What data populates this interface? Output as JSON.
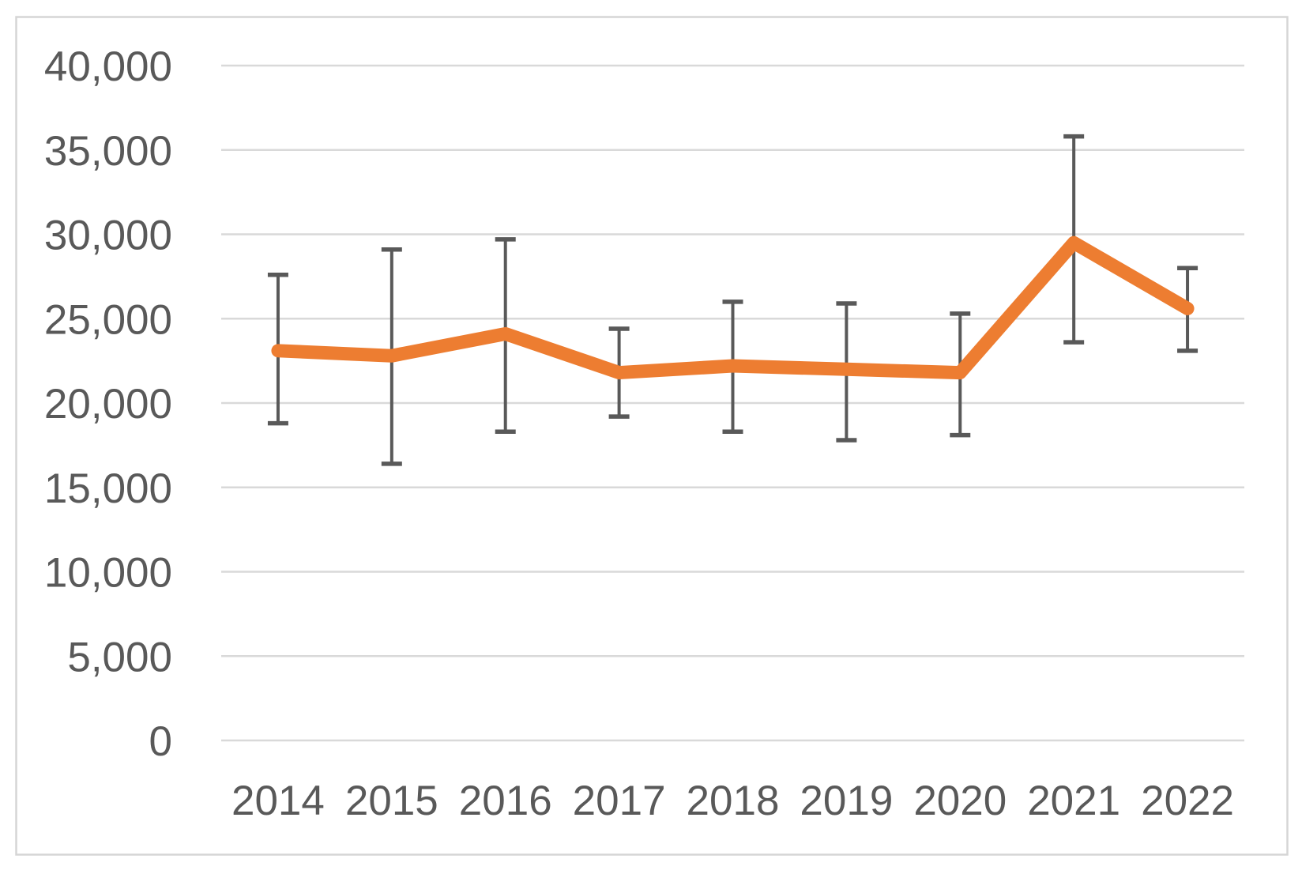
{
  "window": {
    "background": "#FFFFFF",
    "frame_border_color": "#D5D5D5"
  },
  "chart_data": {
    "type": "line",
    "title": "",
    "xlabel": "",
    "ylabel": "",
    "categories": [
      "2014",
      "2015",
      "2016",
      "2017",
      "2018",
      "2019",
      "2020",
      "2021",
      "2022"
    ],
    "series": [
      {
        "color": "#ED7D31",
        "values": [
          23100,
          22800,
          24100,
          21800,
          22200,
          22000,
          21800,
          29500,
          25600
        ],
        "error_bars": {
          "upper": [
            27600,
            29100,
            29700,
            24400,
            26000,
            25900,
            25300,
            35800,
            28000
          ],
          "lower": [
            18800,
            16400,
            18300,
            19200,
            18300,
            17800,
            18100,
            23600,
            23100
          ],
          "color": "#595959"
        }
      }
    ],
    "ylim": [
      0,
      40000
    ],
    "ytick_interval": 5000,
    "ytick_labels": [
      "0",
      "5,000",
      "10,000",
      "15,000",
      "20,000",
      "25,000",
      "30,000",
      "35,000",
      "40,000"
    ],
    "grid": true,
    "gridline_color": "#D9D9D9",
    "axis_label_color": "#595959",
    "legend": false
  }
}
